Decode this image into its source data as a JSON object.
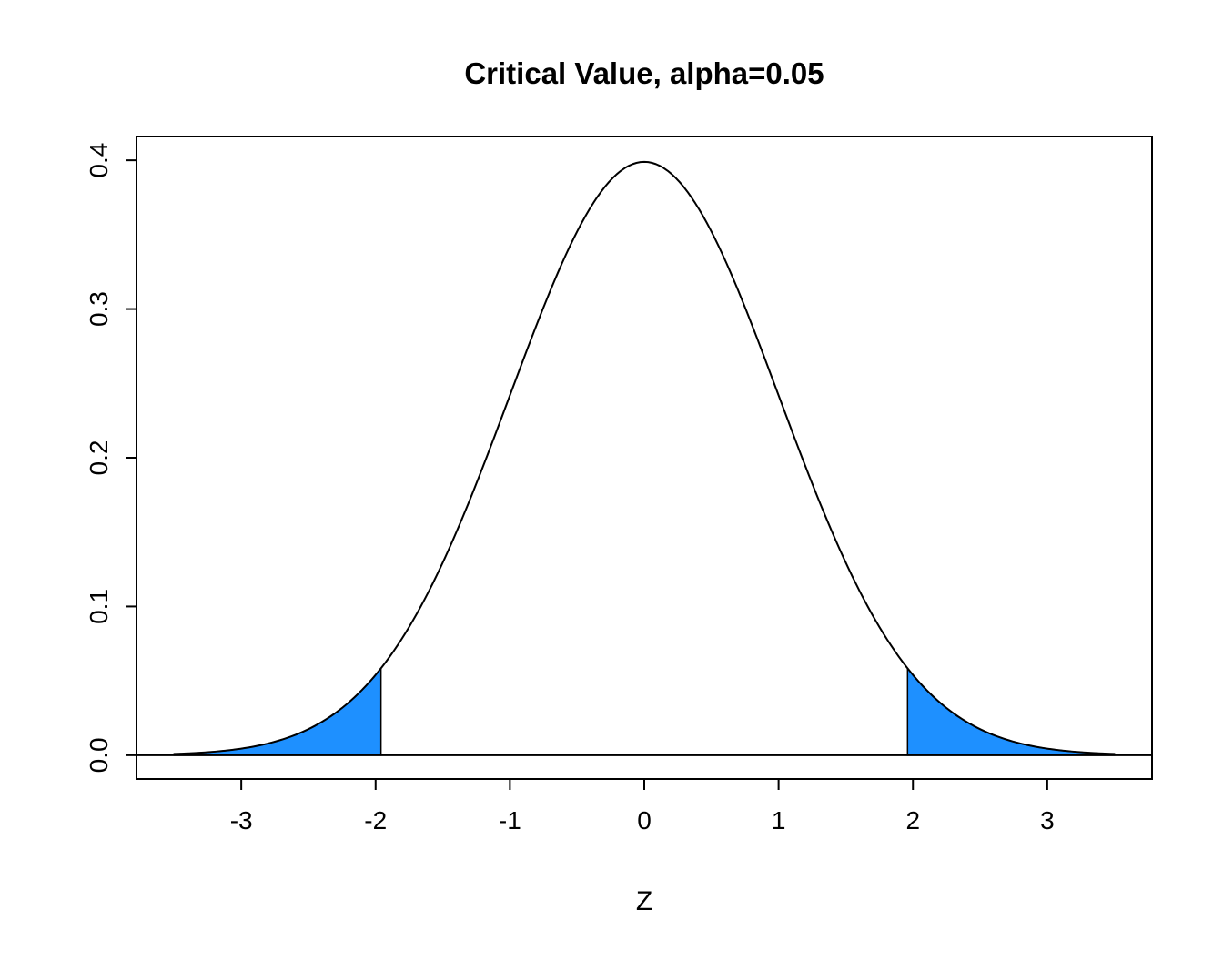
{
  "chart_data": {
    "type": "area",
    "title": "Critical Value, alpha=0.05",
    "xlabel": "Z",
    "ylabel": "",
    "xlim": [
      -3.5,
      3.5
    ],
    "ylim": [
      0,
      0.4
    ],
    "grid": false,
    "legend": null,
    "x_ticks": [
      {
        "value": -3,
        "label": "-3"
      },
      {
        "value": -2,
        "label": "-2"
      },
      {
        "value": -1,
        "label": "-1"
      },
      {
        "value": 0,
        "label": "0"
      },
      {
        "value": 1,
        "label": "1"
      },
      {
        "value": 2,
        "label": "2"
      },
      {
        "value": 3,
        "label": "3"
      }
    ],
    "y_ticks": [
      {
        "value": 0.0,
        "label": "0.0"
      },
      {
        "value": 0.1,
        "label": "0.1"
      },
      {
        "value": 0.2,
        "label": "0.2"
      },
      {
        "value": 0.3,
        "label": "0.3"
      },
      {
        "value": 0.4,
        "label": "0.4"
      }
    ],
    "curve": {
      "distribution": "standard_normal_pdf",
      "x_range": [
        -3.5,
        3.5
      ],
      "peak": {
        "x": 0,
        "y": 0.3989
      },
      "sample_points": {
        "x": [
          -3.5,
          -3,
          -2.5,
          -2,
          -1.959964,
          -1.5,
          -1,
          -0.5,
          0,
          0.5,
          1,
          1.5,
          1.959964,
          2,
          2.5,
          3,
          3.5
        ],
        "y": [
          0.0009,
          0.0044,
          0.0175,
          0.054,
          0.0584,
          0.1295,
          0.242,
          0.3521,
          0.3989,
          0.3521,
          0.242,
          0.1295,
          0.0584,
          0.054,
          0.0175,
          0.0044,
          0.0009
        ]
      }
    },
    "alpha": 0.05,
    "critical_values": [
      -1.959964,
      1.959964
    ],
    "tail_area_each": 0.025,
    "shaded_regions": [
      {
        "from": -3.5,
        "to": -1.959964
      },
      {
        "from": 1.959964,
        "to": 3.5
      }
    ],
    "baseline_y": 0,
    "colors": {
      "curve": "#000000",
      "shade": "#1E90FF",
      "background": "#FFFFFF",
      "text": "#000000"
    }
  }
}
